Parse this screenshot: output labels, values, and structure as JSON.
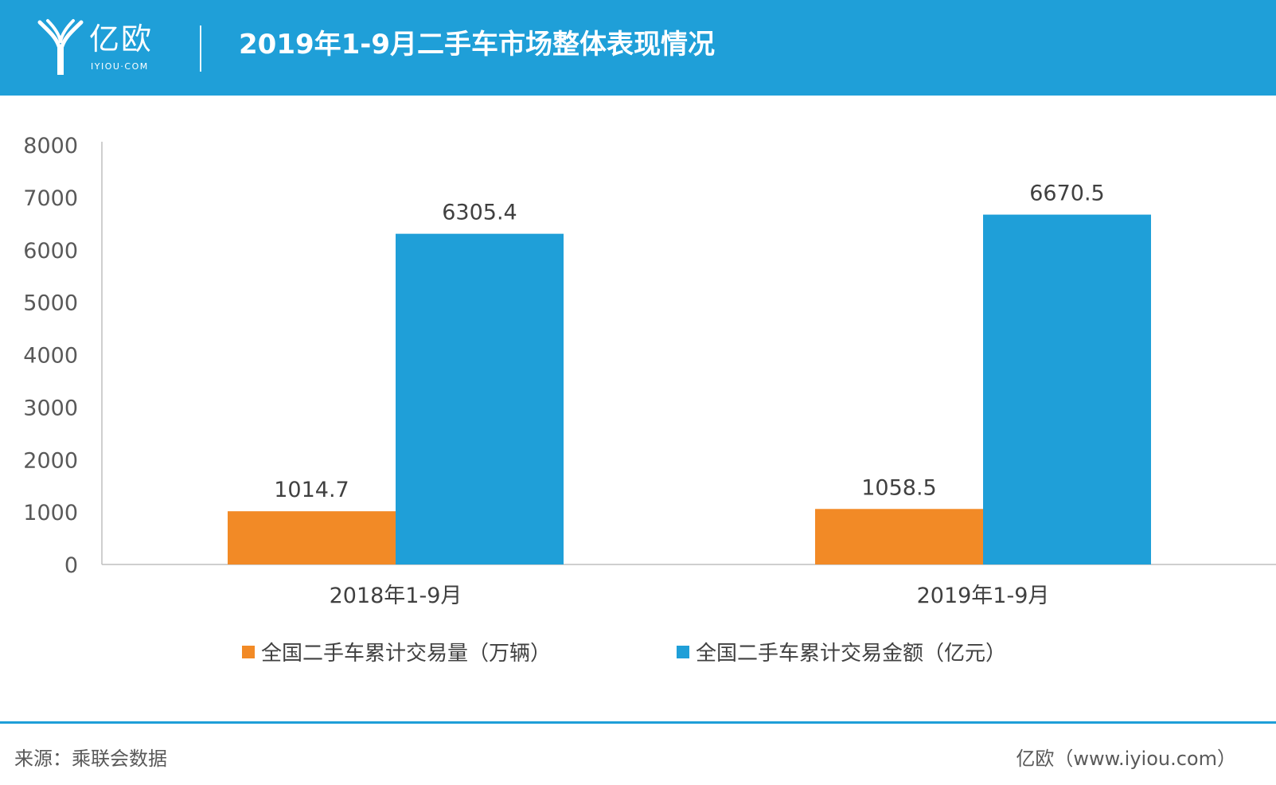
{
  "header": {
    "logo_text": "亿欧",
    "logo_sub": "IYIOU·COM",
    "title": "2019年1-9月二手车市场整体表现情况"
  },
  "colors": {
    "header_bg": "#1f9fd8",
    "series_orange": "#f28a26",
    "series_blue": "#1f9fd8"
  },
  "chart_data": {
    "type": "bar",
    "title": "2019年1-9月二手车市场整体表现情况",
    "categories": [
      "2018年1-9月",
      "2019年1-9月"
    ],
    "series": [
      {
        "name": "全国二手车累计交易量（万辆）",
        "values": [
          1014.7,
          1058.5
        ],
        "color": "#f28a26"
      },
      {
        "name": "全国二手车累计交易金额（亿元）",
        "values": [
          6305.4,
          6670.5
        ],
        "color": "#1f9fd8"
      }
    ],
    "y_ticks": [
      "0",
      "1000",
      "2000",
      "3000",
      "4000",
      "5000",
      "6000",
      "7000",
      "8000"
    ],
    "ylim": [
      0,
      8000
    ],
    "grid": false,
    "legend_position": "bottom",
    "data_labels": [
      [
        "1014.7",
        "1058.5"
      ],
      [
        "6305.4",
        "6670.5"
      ]
    ]
  },
  "footer": {
    "source": "来源：乘联会数据",
    "site": "亿欧（www.iyiou.com）"
  }
}
